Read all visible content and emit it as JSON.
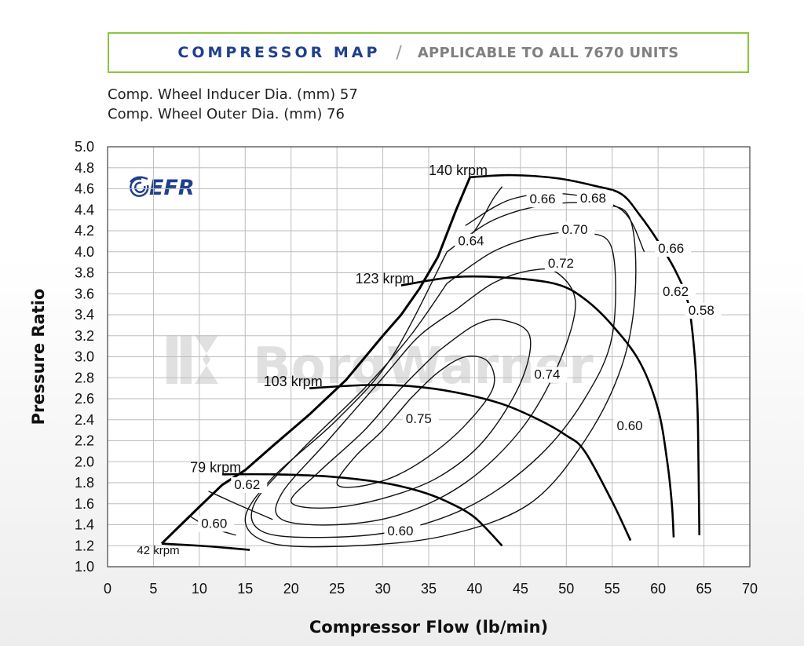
{
  "banner": {
    "title": "COMPRESSOR MAP",
    "separator": "/",
    "subtitle": "APPLICABLE TO ALL 7670 UNITS"
  },
  "specs": {
    "inducer": "Comp. Wheel Inducer Dia. (mm) 57",
    "outer": "Comp. Wheel Outer Dia. (mm) 76"
  },
  "logo": {
    "text": "EFR",
    "icon": "swirl-icon",
    "color": "#1f3f8f"
  },
  "watermark": {
    "text": "BorgWarner",
    "icon": "borgwarner-logo-icon"
  },
  "chart_data": {
    "type": "line",
    "xlabel": "Compressor Flow (lb/min)",
    "ylabel": "Pressure Ratio",
    "xlim": [
      0,
      70
    ],
    "ylim": [
      1.0,
      5.0
    ],
    "xticks": [
      "0",
      "5",
      "10",
      "15",
      "20",
      "25",
      "30",
      "35",
      "40",
      "45",
      "50",
      "55",
      "60",
      "65",
      "70"
    ],
    "yticks": [
      "1.0",
      "1.2",
      "1.4",
      "1.6",
      "1.8",
      "2.0",
      "2.2",
      "2.4",
      "2.6",
      "2.8",
      "3.0",
      "3.2",
      "3.4",
      "3.6",
      "3.8",
      "4.0",
      "4.2",
      "4.4",
      "4.6",
      "4.8",
      "5.0"
    ],
    "grid": true,
    "surge_line": [
      [
        5.9,
        1.22
      ],
      [
        8,
        1.4
      ],
      [
        10,
        1.57
      ],
      [
        12.5,
        1.78
      ],
      [
        15,
        1.92
      ],
      [
        18,
        2.15
      ],
      [
        22,
        2.45
      ],
      [
        26,
        2.78
      ],
      [
        30,
        3.2
      ],
      [
        32,
        3.4
      ],
      [
        34,
        3.65
      ],
      [
        36,
        3.95
      ],
      [
        38,
        4.4
      ],
      [
        39.5,
        4.71
      ]
    ],
    "speed_lines": [
      {
        "label": "42 krpm",
        "points": [
          [
            5.9,
            1.22
          ],
          [
            10,
            1.2
          ],
          [
            13,
            1.18
          ],
          [
            15.5,
            1.16
          ]
        ]
      },
      {
        "label": "79 krpm",
        "points": [
          [
            12.5,
            1.88
          ],
          [
            18,
            1.88
          ],
          [
            24,
            1.86
          ],
          [
            30,
            1.8
          ],
          [
            34,
            1.72
          ],
          [
            37,
            1.62
          ],
          [
            40,
            1.47
          ],
          [
            43,
            1.2
          ]
        ]
      },
      {
        "label": "103 krpm",
        "points": [
          [
            22,
            2.7
          ],
          [
            28,
            2.73
          ],
          [
            33,
            2.72
          ],
          [
            38,
            2.66
          ],
          [
            43,
            2.55
          ],
          [
            47,
            2.4
          ],
          [
            50,
            2.25
          ],
          [
            52,
            2.1
          ],
          [
            55,
            1.62
          ],
          [
            57,
            1.25
          ]
        ]
      },
      {
        "label": "123 krpm",
        "points": [
          [
            32,
            3.68
          ],
          [
            38,
            3.76
          ],
          [
            44,
            3.75
          ],
          [
            49,
            3.69
          ],
          [
            52,
            3.55
          ],
          [
            55,
            3.3
          ],
          [
            58,
            2.95
          ],
          [
            60,
            2.5
          ],
          [
            61,
            2.0
          ],
          [
            61.5,
            1.6
          ],
          [
            61.7,
            1.28
          ]
        ]
      },
      {
        "label": "140 krpm",
        "points": [
          [
            39.5,
            4.71
          ],
          [
            44,
            4.73
          ],
          [
            49,
            4.7
          ],
          [
            53,
            4.63
          ],
          [
            56,
            4.55
          ],
          [
            58,
            4.35
          ],
          [
            60,
            4.1
          ],
          [
            62,
            3.8
          ],
          [
            63.3,
            3.5
          ],
          [
            64,
            3.0
          ],
          [
            64.3,
            2.5
          ],
          [
            64.4,
            2.0
          ],
          [
            64.5,
            1.3
          ]
        ]
      }
    ],
    "efficiency_islands": [
      {
        "label": "0.75",
        "points": [
          [
            33,
            2.6
          ],
          [
            36,
            2.85
          ],
          [
            39,
            3.0
          ],
          [
            41.5,
            2.95
          ],
          [
            42,
            2.7
          ],
          [
            39,
            2.35
          ],
          [
            35,
            2.05
          ],
          [
            31,
            1.85
          ],
          [
            27,
            1.76
          ],
          [
            25,
            1.8
          ],
          [
            27,
            2.05
          ],
          [
            30,
            2.3
          ],
          [
            33,
            2.6
          ]
        ]
      },
      {
        "label": "0.74",
        "points": [
          [
            36,
            3.05
          ],
          [
            40,
            3.3
          ],
          [
            43,
            3.35
          ],
          [
            46,
            3.2
          ],
          [
            45,
            2.75
          ],
          [
            41,
            2.2
          ],
          [
            36,
            1.85
          ],
          [
            30,
            1.65
          ],
          [
            24,
            1.56
          ],
          [
            20,
            1.62
          ],
          [
            23,
            1.9
          ],
          [
            28,
            2.3
          ],
          [
            32,
            2.7
          ],
          [
            36,
            3.05
          ]
        ]
      },
      {
        "label": "0.72",
        "points": [
          [
            38,
            3.45
          ],
          [
            42,
            3.7
          ],
          [
            46,
            3.82
          ],
          [
            49,
            3.8
          ],
          [
            51,
            3.5
          ],
          [
            49,
            2.9
          ],
          [
            45,
            2.3
          ],
          [
            39,
            1.8
          ],
          [
            32,
            1.5
          ],
          [
            25,
            1.4
          ],
          [
            19,
            1.45
          ],
          [
            19,
            1.7
          ],
          [
            24,
            2.2
          ],
          [
            30,
            2.8
          ],
          [
            34,
            3.2
          ],
          [
            38,
            3.45
          ]
        ]
      },
      {
        "label": "0.70",
        "points": [
          [
            37,
            3.7
          ],
          [
            42,
            4.0
          ],
          [
            47,
            4.15
          ],
          [
            52,
            4.18
          ],
          [
            55,
            4.02
          ],
          [
            55,
            3.2
          ],
          [
            52,
            2.6
          ],
          [
            47,
            2.05
          ],
          [
            40,
            1.6
          ],
          [
            32,
            1.35
          ],
          [
            24,
            1.28
          ],
          [
            17,
            1.33
          ],
          [
            16,
            1.6
          ],
          [
            21,
            2.1
          ],
          [
            28,
            2.7
          ],
          [
            33,
            3.2
          ],
          [
            37,
            3.7
          ]
        ]
      },
      {
        "label": "0.68",
        "points": [
          [
            37,
            4.0
          ],
          [
            42,
            4.3
          ],
          [
            48,
            4.45
          ],
          [
            54,
            4.45
          ],
          [
            57,
            4.3
          ],
          [
            57.5,
            3.6
          ],
          [
            56,
            2.9
          ],
          [
            52,
            2.2
          ],
          [
            46,
            1.6
          ],
          [
            37,
            1.3
          ],
          [
            27,
            1.2
          ],
          [
            18,
            1.22
          ],
          [
            15,
            1.45
          ],
          [
            18,
            1.85
          ],
          [
            25,
            2.4
          ],
          [
            31,
            3.0
          ],
          [
            37,
            4.0
          ]
        ]
      },
      {
        "label": "0.66",
        "points": [
          [
            39,
            4.25
          ],
          [
            44,
            4.5
          ],
          [
            50,
            4.55
          ],
          [
            56,
            4.4
          ],
          [
            58.5,
            4.0
          ]
        ]
      },
      {
        "label": "0.64",
        "points": [
          [
            38,
            4.05
          ],
          [
            40,
            4.2
          ],
          [
            42,
            4.5
          ],
          [
            43,
            4.62
          ]
        ]
      },
      {
        "label": "0.62",
        "points": [
          [
            11,
            1.72
          ],
          [
            14,
            1.6
          ],
          [
            18,
            1.45
          ]
        ]
      },
      {
        "label": "0.60",
        "points": [
          [
            9,
            1.48
          ],
          [
            11,
            1.38
          ],
          [
            14,
            1.3
          ]
        ]
      }
    ],
    "annotations": [
      {
        "text": "140 krpm",
        "x": 35,
        "y": 4.73
      },
      {
        "text": "123 krpm",
        "x": 27,
        "y": 3.7
      },
      {
        "text": "103 krpm",
        "x": 17,
        "y": 2.72
      },
      {
        "text": "79 krpm",
        "x": 9,
        "y": 1.9
      },
      {
        "text": "42 krpm",
        "x": 3.2,
        "y": 1.12
      },
      {
        "text": "0.66",
        "x": 46,
        "y": 4.46
      },
      {
        "text": "0.68",
        "x": 51.5,
        "y": 4.47
      },
      {
        "text": "0.64",
        "x": 38.2,
        "y": 4.06
      },
      {
        "text": "0.70",
        "x": 49.5,
        "y": 4.17
      },
      {
        "text": "0.72",
        "x": 48,
        "y": 3.85
      },
      {
        "text": "0.66",
        "x": 60,
        "y": 3.99
      },
      {
        "text": "0.62",
        "x": 60.5,
        "y": 3.58
      },
      {
        "text": "0.58",
        "x": 63.3,
        "y": 3.4
      },
      {
        "text": "0.74",
        "x": 46.5,
        "y": 2.79
      },
      {
        "text": "0.75",
        "x": 32.5,
        "y": 2.37
      },
      {
        "text": "0.60",
        "x": 55.5,
        "y": 2.3
      },
      {
        "text": "0.62",
        "x": 13.8,
        "y": 1.74
      },
      {
        "text": "0.60",
        "x": 10.2,
        "y": 1.37
      },
      {
        "text": "0.60",
        "x": 30.5,
        "y": 1.3
      }
    ]
  }
}
